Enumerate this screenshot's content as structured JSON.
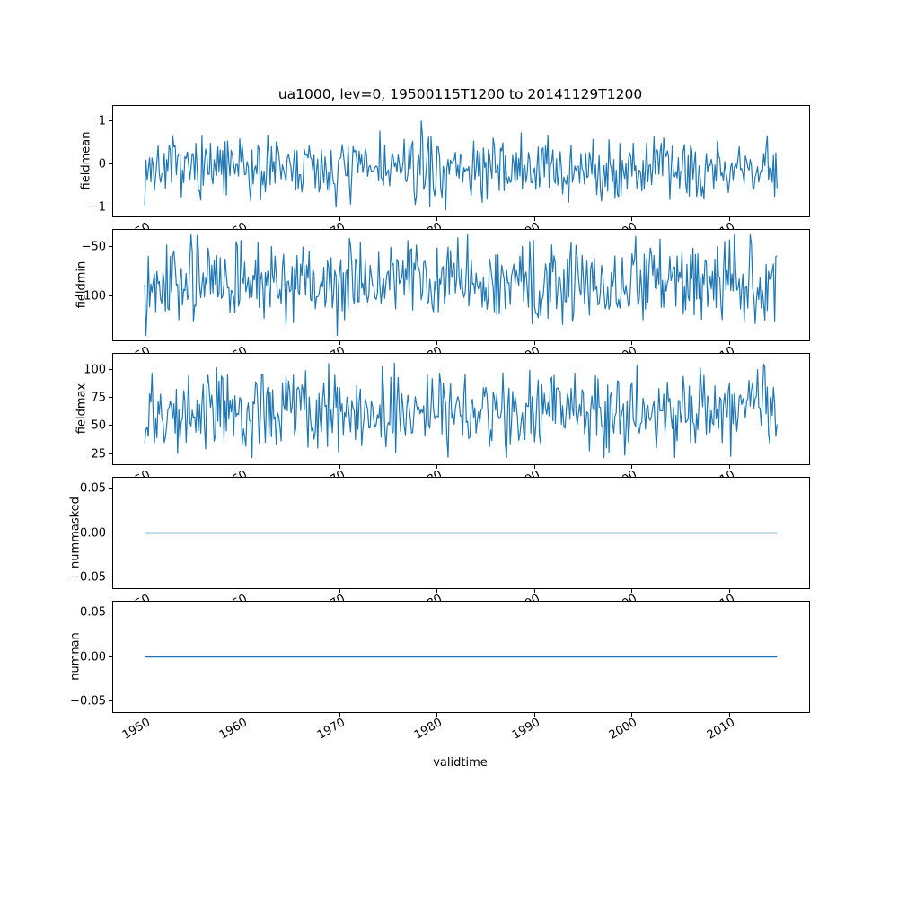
{
  "title": "ua1000, lev=0, 19500115T1200 to 20141129T1200",
  "x_axis": {
    "label": "validtime",
    "lim": [
      1946.8,
      2018.2
    ],
    "data_start": 1950.04,
    "data_end": 2014.91,
    "ticks": [
      1950,
      1960,
      1970,
      1980,
      1990,
      2000,
      2010
    ],
    "tick_labels": [
      "1950",
      "1960",
      "1970",
      "1980",
      "1990",
      "2000",
      "2010"
    ]
  },
  "line_color": "#1f77b4",
  "chart_data": [
    {
      "type": "line",
      "name": "fieldmean",
      "ylabel": "fieldmean",
      "ylim": [
        -1.2,
        1.35
      ],
      "yticks": [
        {
          "v": 1,
          "label": "1"
        },
        {
          "v": 0,
          "label": "0"
        },
        {
          "v": -1,
          "label": "−1"
        }
      ],
      "series": {
        "kind": "noise",
        "n": 520,
        "seed": 7,
        "mean": -0.1,
        "amp": 0.9,
        "clip": [
          -1.05,
          1.2
        ]
      }
    },
    {
      "type": "line",
      "name": "fieldmin",
      "ylabel": "fieldmin",
      "ylim": [
        -145,
        -33
      ],
      "yticks": [
        {
          "v": -50,
          "label": "−50"
        },
        {
          "v": -100,
          "label": "−100"
        }
      ],
      "series": {
        "kind": "noise",
        "n": 520,
        "seed": 13,
        "mean": -85,
        "amp": 48,
        "clip": [
          -140,
          -38
        ]
      }
    },
    {
      "type": "line",
      "name": "fieldmax",
      "ylabel": "fieldmax",
      "ylim": [
        16,
        114
      ],
      "yticks": [
        {
          "v": 100,
          "label": "100"
        },
        {
          "v": 75,
          "label": "75"
        },
        {
          "v": 50,
          "label": "50"
        },
        {
          "v": 25,
          "label": "25"
        }
      ],
      "series": {
        "kind": "noise",
        "n": 520,
        "seed": 29,
        "mean": 63,
        "amp": 44,
        "clip": [
          22,
          110
        ]
      }
    },
    {
      "type": "line",
      "name": "nummasked",
      "ylabel": "nummasked",
      "ylim": [
        -0.0625,
        0.0625
      ],
      "yticks": [
        {
          "v": 0.05,
          "label": "0.05"
        },
        {
          "v": 0,
          "label": "0.00"
        },
        {
          "v": -0.05,
          "label": "−0.05"
        }
      ],
      "series": {
        "kind": "constant",
        "value": 0
      }
    },
    {
      "type": "line",
      "name": "numnan",
      "ylabel": "numnan",
      "ylim": [
        -0.0625,
        0.0625
      ],
      "yticks": [
        {
          "v": 0.05,
          "label": "0.05"
        },
        {
          "v": 0,
          "label": "0.00"
        },
        {
          "v": -0.05,
          "label": "−0.05"
        }
      ],
      "series": {
        "kind": "constant",
        "value": 0
      }
    }
  ]
}
